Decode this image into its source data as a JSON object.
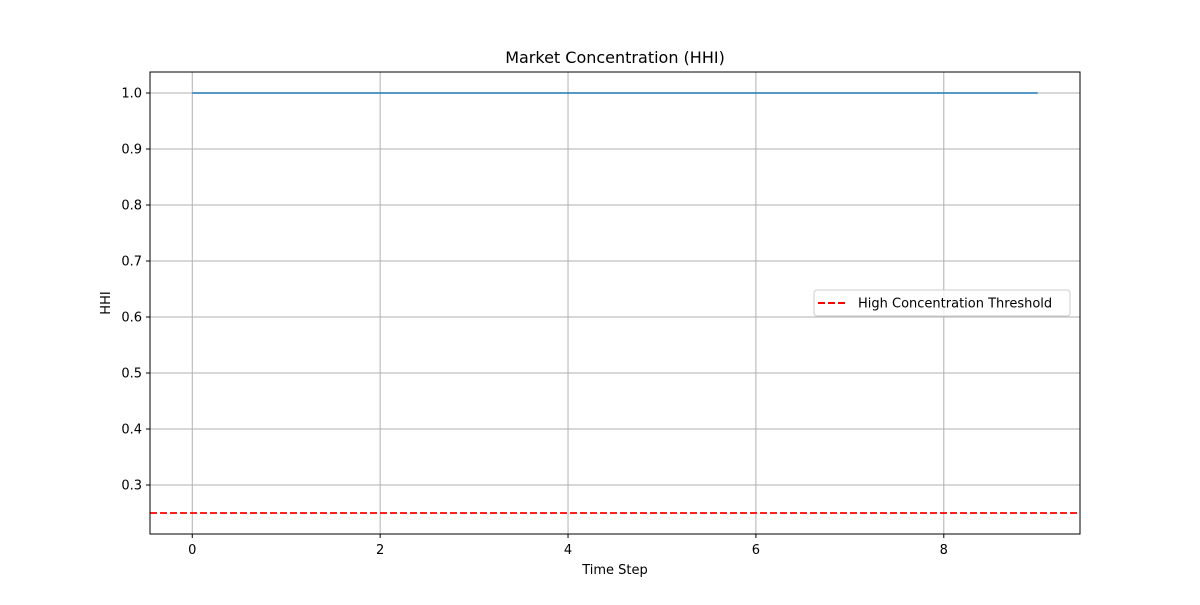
{
  "chart_data": {
    "type": "line",
    "title": "Market Concentration (HHI)",
    "xlabel": "Time Step",
    "ylabel": "HHI",
    "xlim": [
      -0.45,
      9.45
    ],
    "ylim": [
      0.2125,
      1.0375
    ],
    "xticks": [
      0,
      2,
      4,
      6,
      8
    ],
    "xtick_labels": [
      "0",
      "2",
      "4",
      "6",
      "8"
    ],
    "yticks": [
      0.3,
      0.4,
      0.5,
      0.6,
      0.7,
      0.8,
      0.9,
      1.0
    ],
    "ytick_labels": [
      "0.3",
      "0.4",
      "0.5",
      "0.6",
      "0.7",
      "0.8",
      "0.9",
      "1.0"
    ],
    "grid": true,
    "legend_position": "center-right",
    "series": [
      {
        "x": [
          0,
          1,
          2,
          3,
          4,
          5,
          6,
          7,
          8,
          9
        ],
        "values": [
          1.0,
          1.0,
          1.0,
          1.0,
          1.0,
          1.0,
          1.0,
          1.0,
          1.0,
          1.0
        ],
        "color": "#1f77b4",
        "style": "solid"
      }
    ],
    "reference_lines": [
      {
        "orientation": "horizontal",
        "y": 0.25,
        "name": "High Concentration Threshold",
        "color": "#ff0000",
        "style": "dashed"
      }
    ]
  }
}
